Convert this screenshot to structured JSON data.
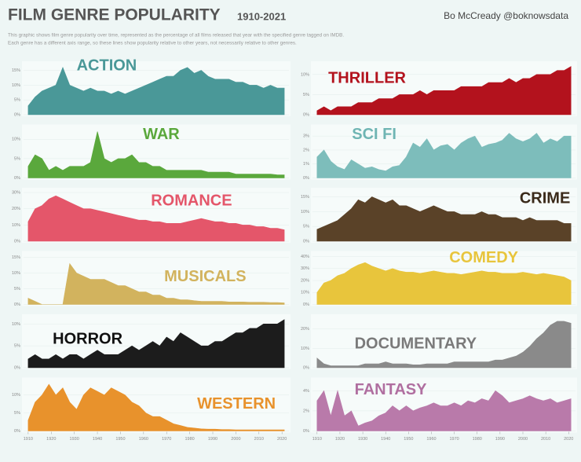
{
  "header": {
    "title": "FILM GENRE POPULARITY",
    "years": "1910-2021",
    "author": "Bo McCready @boknowsdata",
    "description": [
      "This graphic shows film genre popularity over time, represented as the percentage of all films released that year with the specified genre tagged on IMDB.",
      "Each genre has a different axis range, so these lines show popularity relative to other years, not necessarily relative to other genres."
    ]
  },
  "chart_data": [
    {
      "type": "area",
      "title": "ACTION",
      "color": "#4a9898",
      "label_color": "#4a9898",
      "xlim": [
        1908,
        2023
      ],
      "ylim": [
        0,
        17
      ],
      "yticks": [
        {
          "value": 0,
          "label": "0%"
        },
        {
          "value": 5,
          "label": "5%"
        },
        {
          "value": 10,
          "label": "10%"
        },
        {
          "value": 15,
          "label": "15%"
        }
      ],
      "x": [
        1910,
        1913,
        1916,
        1919,
        1922,
        1925,
        1928,
        1931,
        1934,
        1937,
        1940,
        1943,
        1946,
        1949,
        1952,
        1955,
        1958,
        1961,
        1964,
        1967,
        1970,
        1973,
        1976,
        1979,
        1982,
        1985,
        1988,
        1991,
        1994,
        1997,
        2000,
        2003,
        2006,
        2009,
        2012,
        2015,
        2018,
        2021
      ],
      "values": [
        3,
        6,
        8,
        9,
        10,
        16,
        10,
        9,
        8,
        9,
        8,
        8,
        7,
        8,
        7,
        8,
        9,
        10,
        11,
        12,
        13,
        13,
        15,
        16,
        14,
        15,
        13,
        12,
        12,
        12,
        11,
        11,
        10,
        10,
        9,
        10,
        9,
        9
      ]
    },
    {
      "type": "area",
      "title": "THRILLER",
      "color": "#b3121d",
      "label_color": "#b3121d",
      "xlim": [
        1908,
        2023
      ],
      "ylim": [
        0,
        12.5
      ],
      "yticks": [
        {
          "value": 0,
          "label": "0%"
        },
        {
          "value": 5,
          "label": "5%"
        },
        {
          "value": 10,
          "label": "10%"
        }
      ],
      "x": [
        1910,
        1913,
        1916,
        1919,
        1922,
        1925,
        1928,
        1931,
        1934,
        1937,
        1940,
        1943,
        1946,
        1949,
        1952,
        1955,
        1958,
        1961,
        1964,
        1967,
        1970,
        1973,
        1976,
        1979,
        1982,
        1985,
        1988,
        1991,
        1994,
        1997,
        2000,
        2003,
        2006,
        2009,
        2012,
        2015,
        2018,
        2021
      ],
      "values": [
        1,
        2,
        1,
        2,
        2,
        2,
        3,
        3,
        3,
        4,
        4,
        4,
        5,
        5,
        5,
        6,
        5,
        6,
        6,
        6,
        6,
        7,
        7,
        7,
        7,
        8,
        8,
        8,
        9,
        8,
        9,
        9,
        10,
        10,
        10,
        11,
        11,
        12
      ]
    },
    {
      "type": "area",
      "title": "WAR",
      "color": "#5aa83c",
      "label_color": "#5aa83c",
      "xlim": [
        1908,
        2023
      ],
      "ylim": [
        0,
        13
      ],
      "yticks": [
        {
          "value": 0,
          "label": "0%"
        },
        {
          "value": 5,
          "label": "5%"
        },
        {
          "value": 10,
          "label": "10%"
        }
      ],
      "x": [
        1910,
        1913,
        1916,
        1919,
        1922,
        1925,
        1928,
        1931,
        1934,
        1937,
        1940,
        1943,
        1946,
        1949,
        1952,
        1955,
        1958,
        1961,
        1964,
        1967,
        1970,
        1973,
        1976,
        1979,
        1982,
        1985,
        1988,
        1991,
        1994,
        1997,
        2000,
        2003,
        2006,
        2009,
        2012,
        2015,
        2018,
        2021
      ],
      "values": [
        3,
        6,
        5,
        2,
        3,
        2,
        3,
        3,
        3,
        4,
        12,
        5,
        4,
        5,
        5,
        6,
        4,
        4,
        3,
        3,
        2,
        2,
        2,
        2,
        2,
        2,
        1.5,
        1.5,
        1.5,
        1.5,
        1,
        1,
        1,
        1,
        1,
        1,
        0.8,
        0.8
      ]
    },
    {
      "type": "area",
      "title": "SCI FI",
      "color": "#7dbdbb",
      "label_color": "#6fb5b3",
      "xlim": [
        1908,
        2023
      ],
      "ylim": [
        0,
        3.6
      ],
      "yticks": [
        {
          "value": 0,
          "label": "0%"
        },
        {
          "value": 1,
          "label": "1%"
        },
        {
          "value": 2,
          "label": "2%"
        },
        {
          "value": 3,
          "label": "3%"
        }
      ],
      "x": [
        1910,
        1913,
        1916,
        1919,
        1922,
        1925,
        1928,
        1931,
        1934,
        1937,
        1940,
        1943,
        1946,
        1949,
        1952,
        1955,
        1958,
        1961,
        1964,
        1967,
        1970,
        1973,
        1976,
        1979,
        1982,
        1985,
        1988,
        1991,
        1994,
        1997,
        2000,
        2003,
        2006,
        2009,
        2012,
        2015,
        2018,
        2021
      ],
      "values": [
        1.5,
        2,
        1.2,
        0.8,
        0.6,
        1.3,
        1,
        0.7,
        0.8,
        0.6,
        0.5,
        0.8,
        0.9,
        1.5,
        2.5,
        2.2,
        2.8,
        2,
        2.3,
        2.4,
        2,
        2.5,
        2.8,
        3,
        2.2,
        2.4,
        2.5,
        2.7,
        3.2,
        2.8,
        2.6,
        2.8,
        3.2,
        2.5,
        2.8,
        2.6,
        3,
        3
      ]
    },
    {
      "type": "area",
      "title": "ROMANCE",
      "color": "#e4566a",
      "label_color": "#e4566a",
      "xlim": [
        1908,
        2023
      ],
      "ylim": [
        0,
        31
      ],
      "yticks": [
        {
          "value": 0,
          "label": "0%"
        },
        {
          "value": 10,
          "label": "10%"
        },
        {
          "value": 20,
          "label": "20%"
        },
        {
          "value": 30,
          "label": "30%"
        }
      ],
      "x": [
        1910,
        1913,
        1916,
        1919,
        1922,
        1925,
        1928,
        1931,
        1934,
        1937,
        1940,
        1943,
        1946,
        1949,
        1952,
        1955,
        1958,
        1961,
        1964,
        1967,
        1970,
        1973,
        1976,
        1979,
        1982,
        1985,
        1988,
        1991,
        1994,
        1997,
        2000,
        2003,
        2006,
        2009,
        2012,
        2015,
        2018,
        2021
      ],
      "values": [
        12,
        20,
        22,
        26,
        28,
        26,
        24,
        22,
        20,
        20,
        19,
        18,
        17,
        16,
        15,
        14,
        13,
        13,
        12,
        12,
        11,
        11,
        11,
        12,
        13,
        14,
        13,
        12,
        12,
        11,
        11,
        10,
        10,
        9,
        9,
        8,
        8,
        7
      ]
    },
    {
      "type": "area",
      "title": "CRIME",
      "color": "#5a4228",
      "label_color": "#3a2a1a",
      "xlim": [
        1908,
        2023
      ],
      "ylim": [
        0,
        17
      ],
      "yticks": [
        {
          "value": 0,
          "label": "0%"
        },
        {
          "value": 5,
          "label": "5%"
        },
        {
          "value": 10,
          "label": "10%"
        },
        {
          "value": 15,
          "label": "15%"
        }
      ],
      "x": [
        1910,
        1913,
        1916,
        1919,
        1922,
        1925,
        1928,
        1931,
        1934,
        1937,
        1940,
        1943,
        1946,
        1949,
        1952,
        1955,
        1958,
        1961,
        1964,
        1967,
        1970,
        1973,
        1976,
        1979,
        1982,
        1985,
        1988,
        1991,
        1994,
        1997,
        2000,
        2003,
        2006,
        2009,
        2012,
        2015,
        2018,
        2021
      ],
      "values": [
        4,
        5,
        6,
        7,
        9,
        11,
        14,
        13,
        15,
        14,
        13,
        14,
        12,
        12,
        11,
        10,
        11,
        12,
        11,
        10,
        10,
        9,
        9,
        9,
        10,
        9,
        9,
        8,
        8,
        8,
        7,
        8,
        7,
        7,
        7,
        7,
        6,
        6
      ]
    },
    {
      "type": "area",
      "title": "MUSICALS",
      "color": "#d2b35e",
      "label_color": "#d2b35e",
      "xlim": [
        1908,
        2023
      ],
      "ylim": [
        0,
        16
      ],
      "yticks": [
        {
          "value": 0,
          "label": "0%"
        },
        {
          "value": 5,
          "label": "5%"
        },
        {
          "value": 10,
          "label": "10%"
        },
        {
          "value": 15,
          "label": "15%"
        }
      ],
      "x": [
        1910,
        1913,
        1916,
        1919,
        1922,
        1925,
        1928,
        1931,
        1934,
        1937,
        1940,
        1943,
        1946,
        1949,
        1952,
        1955,
        1958,
        1961,
        1964,
        1967,
        1970,
        1973,
        1976,
        1979,
        1982,
        1985,
        1988,
        1991,
        1994,
        1997,
        2000,
        2003,
        2006,
        2009,
        2012,
        2015,
        2018,
        2021
      ],
      "values": [
        2,
        1,
        0,
        0,
        0,
        0,
        13,
        10,
        9,
        8,
        8,
        8,
        7,
        6,
        6,
        5,
        4,
        4,
        3,
        3,
        2,
        2,
        1.5,
        1.5,
        1.2,
        1,
        1,
        1,
        1,
        0.8,
        0.8,
        0.8,
        0.7,
        0.7,
        0.7,
        0.6,
        0.6,
        0.5
      ]
    },
    {
      "type": "area",
      "title": "COMEDY",
      "color": "#e8c53c",
      "label_color": "#e8c53c",
      "xlim": [
        1908,
        2023
      ],
      "ylim": [
        0,
        42
      ],
      "yticks": [
        {
          "value": 0,
          "label": "0%"
        },
        {
          "value": 10,
          "label": "10%"
        },
        {
          "value": 20,
          "label": "20%"
        },
        {
          "value": 30,
          "label": "30%"
        },
        {
          "value": 40,
          "label": "40%"
        }
      ],
      "x": [
        1910,
        1913,
        1916,
        1919,
        1922,
        1925,
        1928,
        1931,
        1934,
        1937,
        1940,
        1943,
        1946,
        1949,
        1952,
        1955,
        1958,
        1961,
        1964,
        1967,
        1970,
        1973,
        1976,
        1979,
        1982,
        1985,
        1988,
        1991,
        1994,
        1997,
        2000,
        2003,
        2006,
        2009,
        2012,
        2015,
        2018,
        2021
      ],
      "values": [
        10,
        18,
        20,
        24,
        26,
        30,
        33,
        35,
        32,
        30,
        28,
        30,
        28,
        27,
        27,
        26,
        27,
        28,
        27,
        26,
        26,
        25,
        26,
        27,
        28,
        27,
        27,
        26,
        26,
        26,
        27,
        26,
        25,
        26,
        25,
        24,
        23,
        20
      ]
    },
    {
      "type": "area",
      "title": "HORROR",
      "color": "#1c1c1c",
      "label_color": "#111111",
      "xlim": [
        1908,
        2023
      ],
      "ylim": [
        0,
        11.5
      ],
      "yticks": [
        {
          "value": 0,
          "label": "0%"
        },
        {
          "value": 5,
          "label": "5%"
        },
        {
          "value": 10,
          "label": "10%"
        }
      ],
      "x": [
        1910,
        1913,
        1916,
        1919,
        1922,
        1925,
        1928,
        1931,
        1934,
        1937,
        1940,
        1943,
        1946,
        1949,
        1952,
        1955,
        1958,
        1961,
        1964,
        1967,
        1970,
        1973,
        1976,
        1979,
        1982,
        1985,
        1988,
        1991,
        1994,
        1997,
        2000,
        2003,
        2006,
        2009,
        2012,
        2015,
        2018,
        2021
      ],
      "values": [
        2,
        3,
        2,
        2,
        3,
        2,
        3,
        3,
        2,
        3,
        4,
        3,
        3,
        3,
        4,
        5,
        4,
        5,
        6,
        5,
        7,
        6,
        8,
        7,
        6,
        5,
        5,
        6,
        6,
        7,
        8,
        8,
        9,
        9,
        10,
        10,
        10,
        11
      ]
    },
    {
      "type": "area",
      "title": "DOCUMENTARY",
      "color": "#8a8a8a",
      "label_color": "#7a7a7a",
      "xlim": [
        1908,
        2023
      ],
      "ylim": [
        0,
        26
      ],
      "yticks": [
        {
          "value": 0,
          "label": "0%"
        },
        {
          "value": 10,
          "label": "10%"
        },
        {
          "value": 20,
          "label": "20%"
        }
      ],
      "x": [
        1910,
        1913,
        1916,
        1919,
        1922,
        1925,
        1928,
        1931,
        1934,
        1937,
        1940,
        1943,
        1946,
        1949,
        1952,
        1955,
        1958,
        1961,
        1964,
        1967,
        1970,
        1973,
        1976,
        1979,
        1982,
        1985,
        1988,
        1991,
        1994,
        1997,
        2000,
        2003,
        2006,
        2009,
        2012,
        2015,
        2018,
        2021
      ],
      "values": [
        5,
        2,
        1,
        1,
        1,
        1,
        1,
        2,
        2,
        2,
        3,
        2,
        2,
        2,
        1.5,
        1.5,
        2,
        2,
        2,
        2,
        3,
        3,
        3,
        3,
        3,
        3,
        4,
        4,
        5,
        6,
        8,
        11,
        15,
        18,
        22,
        24,
        24,
        23
      ]
    },
    {
      "type": "area",
      "title": "WESTERN",
      "color": "#e8922c",
      "label_color": "#e8922c",
      "xlim": [
        1908,
        2023
      ],
      "ylim": [
        0,
        14
      ],
      "yticks": [
        {
          "value": 0,
          "label": "0%"
        },
        {
          "value": 5,
          "label": "5%"
        },
        {
          "value": 10,
          "label": "10%"
        }
      ],
      "xticks": [
        1910,
        1920,
        1930,
        1940,
        1950,
        1960,
        1970,
        1980,
        1990,
        2000,
        2010,
        2020
      ],
      "x": [
        1910,
        1913,
        1916,
        1919,
        1922,
        1925,
        1928,
        1931,
        1934,
        1937,
        1940,
        1943,
        1946,
        1949,
        1952,
        1955,
        1958,
        1961,
        1964,
        1967,
        1970,
        1973,
        1976,
        1979,
        1982,
        1985,
        1988,
        1991,
        1994,
        1997,
        2000,
        2003,
        2006,
        2009,
        2012,
        2015,
        2018,
        2021
      ],
      "values": [
        3,
        8,
        10,
        13,
        10,
        12,
        8,
        6,
        10,
        12,
        11,
        10,
        12,
        11,
        10,
        8,
        7,
        5,
        4,
        4,
        3,
        2,
        1.5,
        1,
        0.8,
        0.6,
        0.5,
        0.5,
        0.4,
        0.4,
        0.3,
        0.3,
        0.3,
        0.3,
        0.3,
        0.3,
        0.3,
        0.3
      ]
    },
    {
      "type": "area",
      "title": "FANTASY",
      "color": "#b97aaa",
      "label_color": "#b06fa0",
      "xlim": [
        1908,
        2023
      ],
      "ylim": [
        0,
        5
      ],
      "yticks": [
        {
          "value": 0,
          "label": "0%"
        },
        {
          "value": 2,
          "label": "2%"
        },
        {
          "value": 4,
          "label": "4%"
        }
      ],
      "xticks": [
        1910,
        1920,
        1930,
        1940,
        1950,
        1960,
        1970,
        1980,
        1990,
        2000,
        2010,
        2020
      ],
      "x": [
        1910,
        1913,
        1916,
        1919,
        1922,
        1925,
        1928,
        1931,
        1934,
        1937,
        1940,
        1943,
        1946,
        1949,
        1952,
        1955,
        1958,
        1961,
        1964,
        1967,
        1970,
        1973,
        1976,
        1979,
        1982,
        1985,
        1988,
        1991,
        1994,
        1997,
        2000,
        2003,
        2006,
        2009,
        2012,
        2015,
        2018,
        2021
      ],
      "values": [
        3,
        4,
        1.5,
        4,
        1.5,
        2,
        0.5,
        0.8,
        1,
        1.5,
        1.8,
        2.5,
        2,
        2.5,
        2,
        2.3,
        2.5,
        2.8,
        2.5,
        2.5,
        2.8,
        2.5,
        3,
        2.8,
        3.2,
        3,
        4,
        3.5,
        2.8,
        3,
        3.2,
        3.5,
        3.2,
        3,
        3.2,
        2.8,
        3,
        3.2
      ]
    }
  ]
}
